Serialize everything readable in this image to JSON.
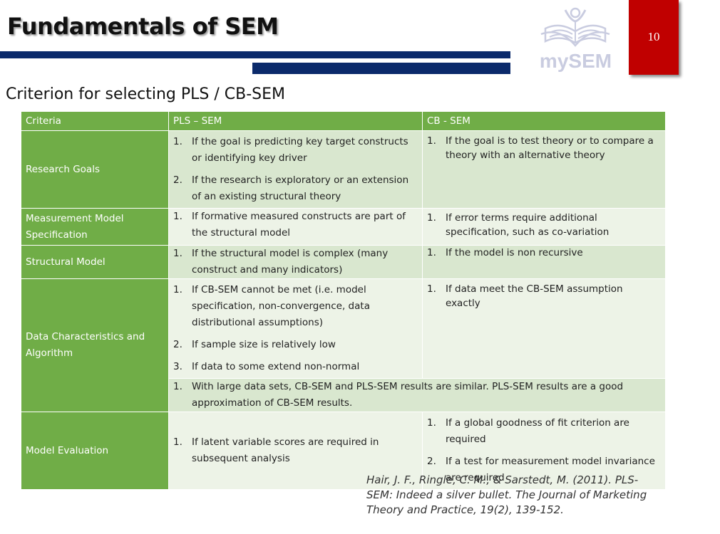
{
  "header": {
    "title": "Fundamentals of SEM",
    "logo_text": "mySEM",
    "page_number": "10",
    "colors": {
      "navy": "#0b2a6b",
      "red": "#c00000",
      "green": "#70ad47"
    }
  },
  "subtitle": "Criterion for selecting PLS / CB-SEM",
  "table": {
    "headers": [
      "Criteria",
      "PLS – SEM",
      "CB - SEM"
    ],
    "rows": {
      "research_goals": {
        "label": "Research Goals",
        "pls": [
          "If the goal is predicting key target constructs or identifying key driver",
          "If the research is exploratory or an extension of an existing structural theory"
        ],
        "cb": [
          "If the goal is to test theory or to compare a theory with an alternative theory"
        ]
      },
      "measurement": {
        "label": "Measurement Model Specification",
        "pls": [
          "If formative measured constructs are part of the structural model"
        ],
        "cb": [
          "If error terms require additional specification, such as co-variation"
        ]
      },
      "structural": {
        "label": "Structural Model",
        "pls": [
          "If the structural model is complex (many construct and many indicators)"
        ],
        "cb": [
          "If the model is non recursive"
        ]
      },
      "data": {
        "label": "Data Characteristics and Algorithm",
        "pls": [
          "If CB-SEM cannot be met (i.e. model specification, non-convergence, data distributional assumptions)",
          "If sample size is relatively low",
          "If data to some extend non-normal"
        ],
        "cb": [
          "If data meet the CB-SEM assumption exactly"
        ],
        "both": [
          "With large data sets, CB-SEM and PLS-SEM results are similar. PLS-SEM results are a good approximation of CB-SEM results."
        ]
      },
      "evaluation": {
        "label": "Model Evaluation",
        "pls": [
          "If latent variable scores are required in subsequent analysis"
        ],
        "cb": [
          "If a global goodness of fit criterion are required",
          "If a test for measurement model invariance are required"
        ]
      }
    }
  },
  "reference": "Hair, J. F., Ringle, C. M., & Sarstedt, M. (2011). PLS-SEM: Indeed a silver bullet. The Journal of Marketing Theory and Practice, 19(2), 139-152."
}
